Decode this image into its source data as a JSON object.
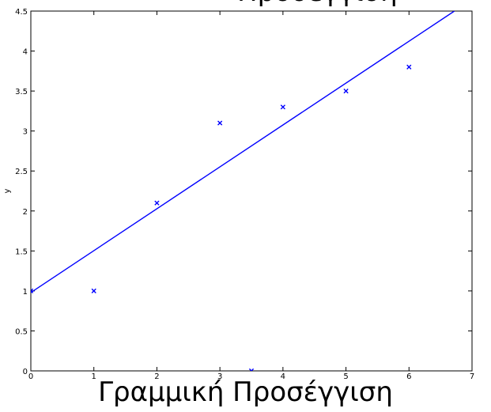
{
  "chart_data": {
    "type": "scatter",
    "xlabel": "",
    "ylabel": "y",
    "xlim": [
      0,
      7
    ],
    "ylim": [
      0,
      4.5
    ],
    "x_ticks": [
      "0",
      "1",
      "2",
      "3",
      "4",
      "5",
      "6",
      "7"
    ],
    "y_ticks": [
      "0",
      "0.5",
      "1",
      "1.5",
      "2",
      "2.5",
      "3",
      "3.5",
      "4",
      "4.5"
    ],
    "series": [
      {
        "marker": "x",
        "color": "#0000ff",
        "points": [
          {
            "x": 0,
            "y": 1
          },
          {
            "x": 1,
            "y": 1
          },
          {
            "x": 2,
            "y": 2.1
          },
          {
            "x": 3,
            "y": 3.1
          },
          {
            "x": 3.5,
            "y": 0
          },
          {
            "x": 4,
            "y": 3.3
          },
          {
            "x": 5,
            "y": 3.5
          },
          {
            "x": 6,
            "y": 3.8
          }
        ]
      }
    ],
    "fit_line": {
      "color": "#0000ff",
      "start": {
        "x": 0,
        "y": 0.98
      },
      "end": {
        "x": 6.72,
        "y": 4.5
      }
    },
    "grid": false
  },
  "caption": "Γραμμική Προσέγγιση"
}
